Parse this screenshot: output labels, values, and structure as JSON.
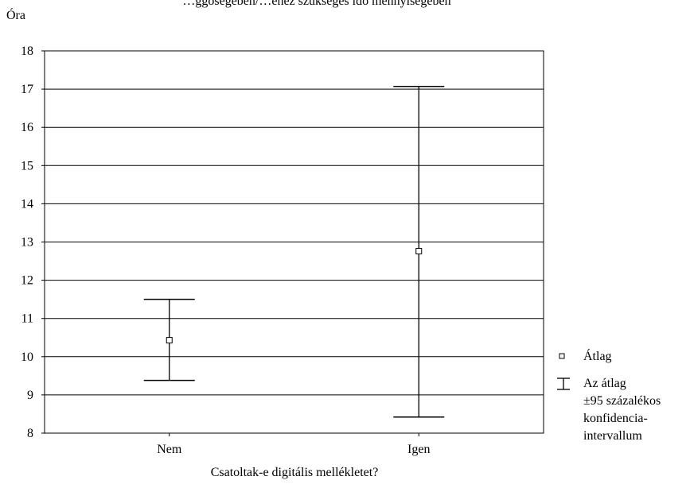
{
  "chart_data": {
    "type": "errorbar",
    "title": "…ggőségében/…éhez szükséges idő mennyiségében",
    "ylabel": "Óra",
    "xlabel": "Csatoltak-e digitális mellékletet?",
    "categories": [
      "Nem",
      "Igen"
    ],
    "ylim": [
      8,
      18
    ],
    "yticks": [
      8,
      9,
      10,
      11,
      12,
      13,
      14,
      15,
      16,
      17,
      18
    ],
    "grid": true,
    "series": [
      {
        "name": "Átlag",
        "values": [
          10.43,
          12.76
        ]
      },
      {
        "name": "Az átlag ±95 százalékos konfidencia-intervallum",
        "lower": [
          9.38,
          8.42
        ],
        "upper": [
          11.5,
          17.07
        ]
      }
    ],
    "legend": {
      "position": "right",
      "mean_label": "Átlag",
      "ci_label_lines": [
        "Az átlag",
        "±95 százalékos",
        "konfidencia-",
        "intervallum"
      ]
    }
  }
}
